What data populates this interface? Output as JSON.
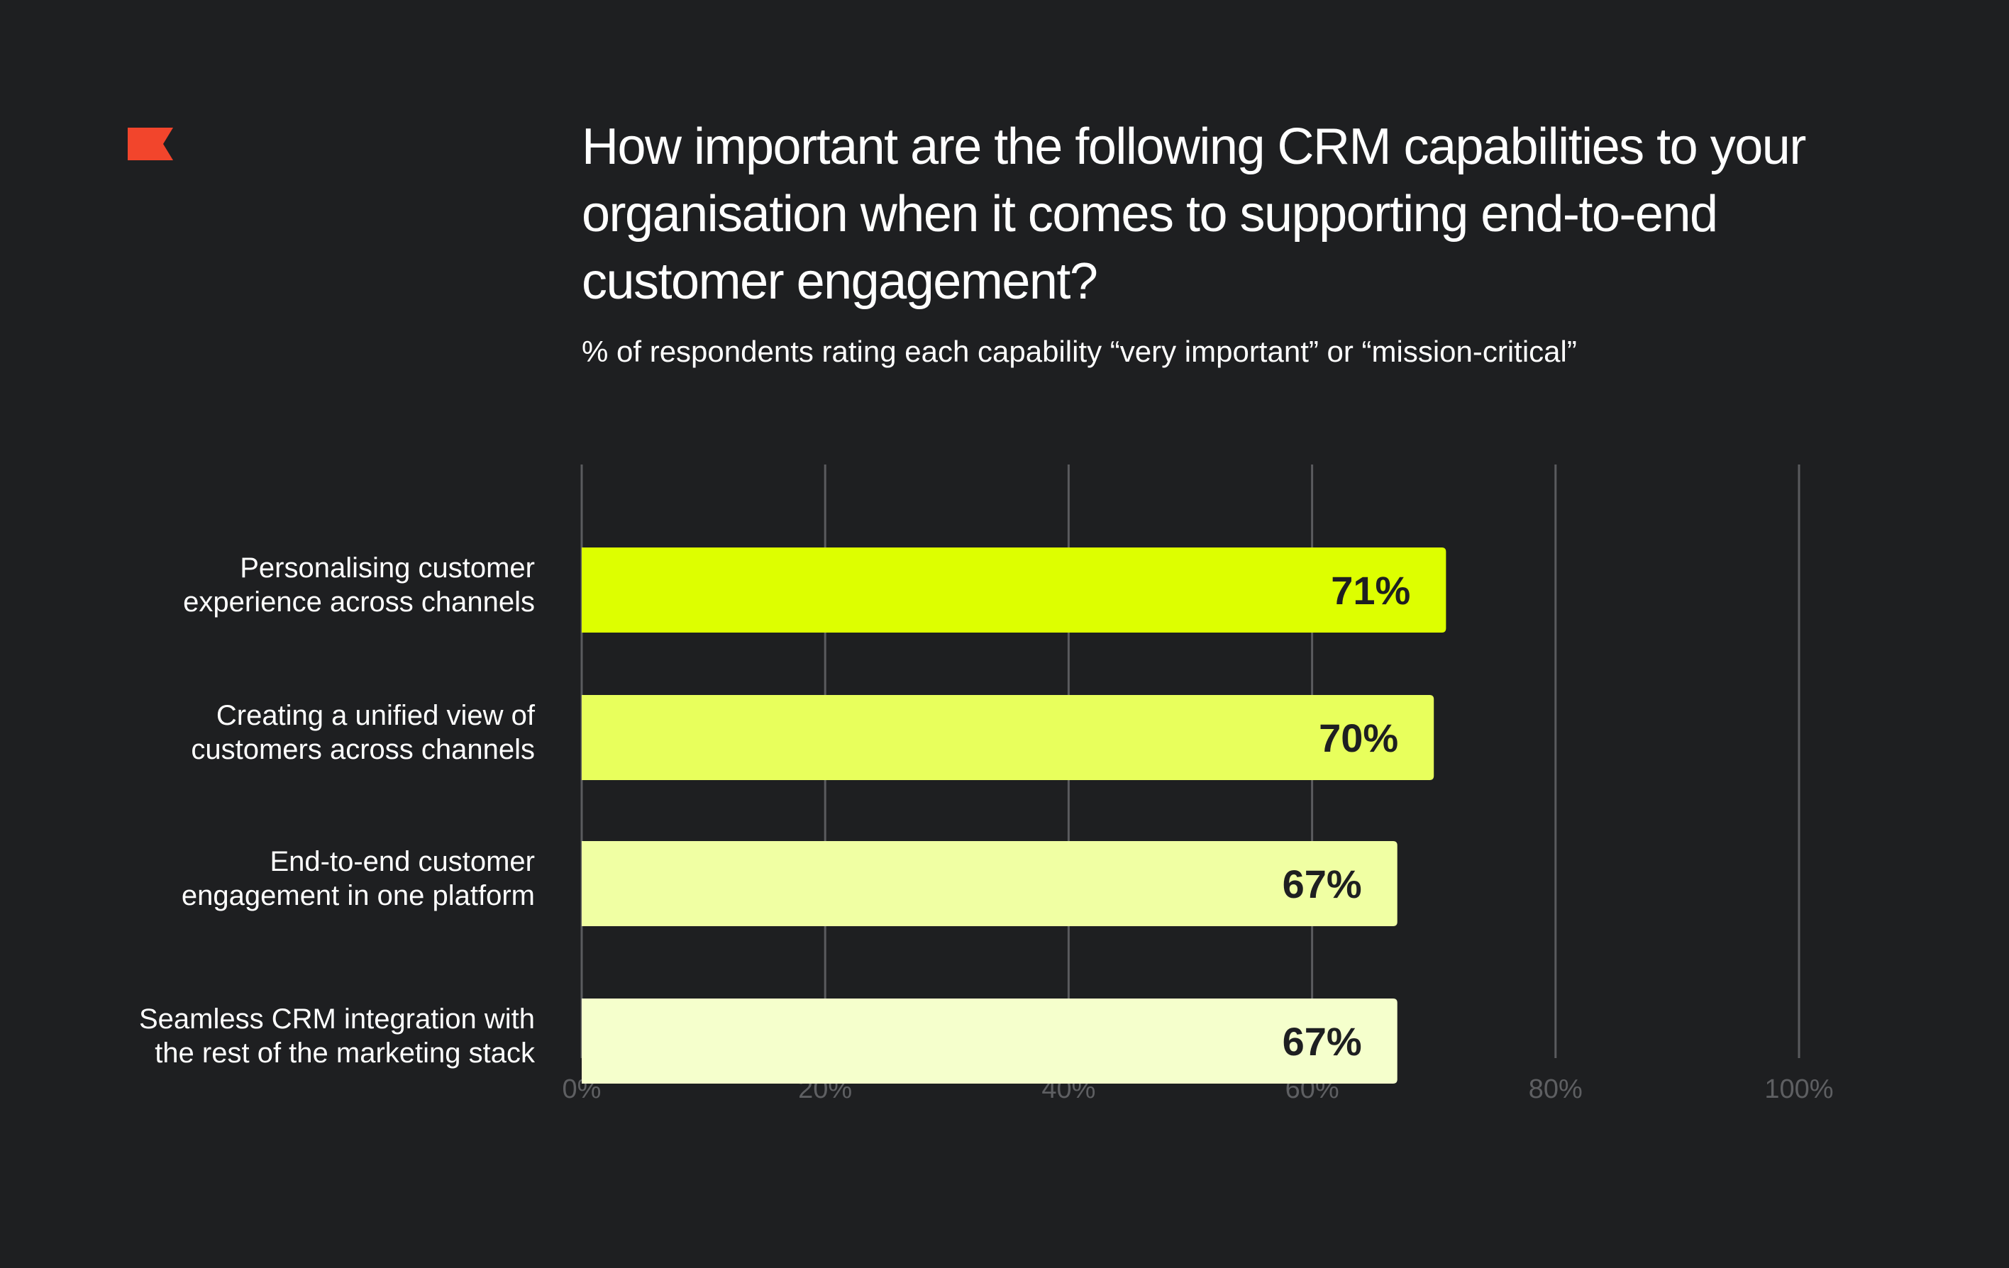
{
  "header": {
    "logo_icon": "flag-icon",
    "logo_color": "#f2452c",
    "title": "How important are the following CRM capabilities to your organisation when it comes to supporting end-to-end customer engagement?",
    "subtitle": "% of respondents rating each capability “very important” or “mission-critical”"
  },
  "chart_data": {
    "type": "bar",
    "orientation": "horizontal",
    "categories": [
      [
        "Personalising customer",
        "experience across channels"
      ],
      [
        "Creating a unified view of",
        "customers across channels"
      ],
      [
        "End-to-end customer",
        "engagement in one platform"
      ],
      [
        "Seamless CRM integration with",
        "the rest of the marketing stack"
      ]
    ],
    "values": [
      71,
      70,
      67,
      67
    ],
    "value_labels": [
      "71%",
      "70%",
      "67%",
      "67%"
    ],
    "bar_colors": [
      "#ddff00",
      "#e8ff5c",
      "#f0ffa3",
      "#f5ffcc"
    ],
    "xlim": [
      0,
      100
    ],
    "xticks": [
      0,
      20,
      40,
      60,
      80,
      100
    ],
    "xtick_labels": [
      "0%",
      "20%",
      "40%",
      "60%",
      "80%",
      "100%"
    ],
    "grid": true,
    "gridline_color": "#5a5b5e"
  }
}
